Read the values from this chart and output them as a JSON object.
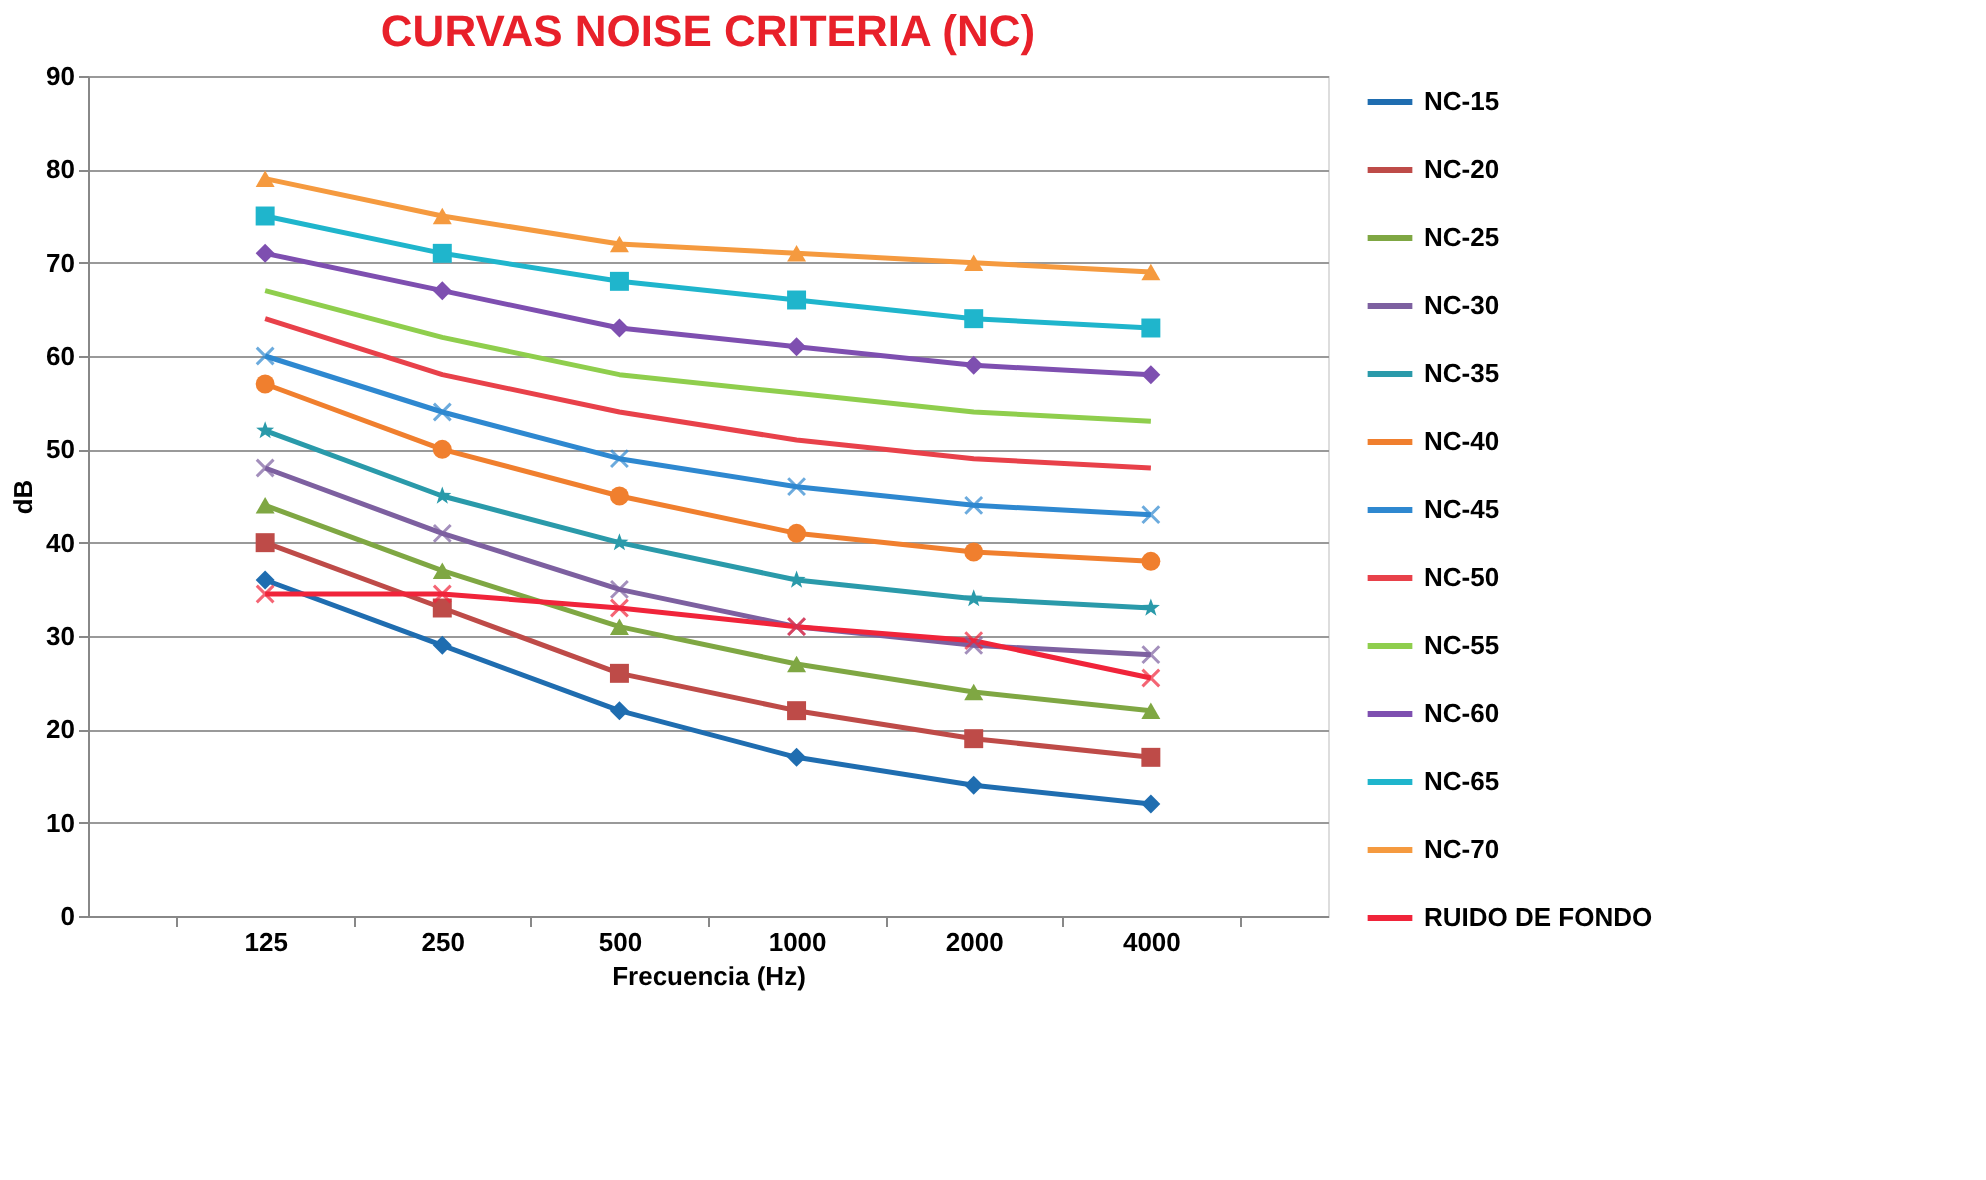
{
  "chart_data": {
    "type": "line",
    "title": "CURVAS NOISE CRITERIA (NC)",
    "xlabel": "Frecuencia (Hz)",
    "ylabel": "dB",
    "categories": [
      "125",
      "250",
      "500",
      "1000",
      "2000",
      "4000"
    ],
    "ylim": [
      0,
      90
    ],
    "yticks": [
      0,
      10,
      20,
      30,
      40,
      50,
      60,
      70,
      80,
      90
    ],
    "grid": "y",
    "legend": "right",
    "line_style": "solid",
    "series": [
      {
        "name": "NC-15",
        "color": "#1f6db0",
        "marker": "diamond",
        "values": [
          36,
          29,
          22,
          17,
          14,
          12
        ]
      },
      {
        "name": "NC-20",
        "color": "#be4b48",
        "marker": "square",
        "values": [
          40,
          33,
          26,
          22,
          19,
          17
        ]
      },
      {
        "name": "NC-25",
        "color": "#7fa743",
        "marker": "triangle",
        "values": [
          44,
          37,
          31,
          27,
          24,
          22
        ]
      },
      {
        "name": "NC-30",
        "color": "#7d60a0",
        "marker": "cross",
        "values": [
          48,
          41,
          35,
          31,
          29,
          28
        ]
      },
      {
        "name": "NC-35",
        "color": "#2a9aaa",
        "marker": "star",
        "values": [
          52,
          45,
          40,
          36,
          34,
          33
        ]
      },
      {
        "name": "NC-40",
        "color": "#f07f2e",
        "marker": "circle",
        "values": [
          57,
          50,
          45,
          41,
          39,
          38
        ]
      },
      {
        "name": "NC-45",
        "color": "#2e88d0",
        "marker": "cross",
        "values": [
          60,
          54,
          49,
          46,
          44,
          43
        ]
      },
      {
        "name": "NC-50",
        "color": "#e8414a",
        "marker": "none",
        "values": [
          64,
          58,
          54,
          51,
          49,
          48
        ]
      },
      {
        "name": "NC-55",
        "color": "#8fce4d",
        "marker": "none",
        "values": [
          67,
          62,
          58,
          56,
          54,
          53
        ]
      },
      {
        "name": "NC-60",
        "color": "#7e4fb0",
        "marker": "diamond",
        "values": [
          71,
          67,
          63,
          61,
          59,
          58
        ]
      },
      {
        "name": "NC-65",
        "color": "#1fb5cc",
        "marker": "square",
        "values": [
          75,
          71,
          68,
          66,
          64,
          63
        ]
      },
      {
        "name": "NC-70",
        "color": "#f59a3f",
        "marker": "triangle",
        "values": [
          79,
          75,
          72,
          71,
          70,
          69
        ]
      },
      {
        "name": "RUIDO DE FONDO",
        "color": "#f0243a",
        "marker": "cross",
        "values": [
          34.5,
          34.5,
          33,
          31,
          29.5,
          25.5
        ]
      }
    ]
  }
}
